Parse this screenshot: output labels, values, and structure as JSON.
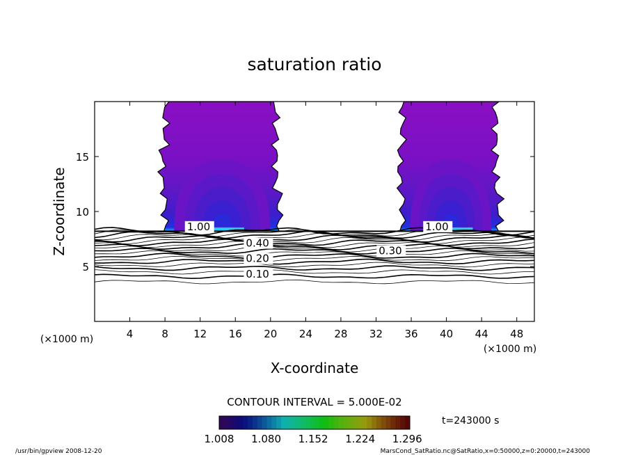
{
  "chart_data": {
    "type": "contour",
    "title": "saturation ratio",
    "xlabel": "X-coordinate",
    "ylabel": "Z-coordinate",
    "x_unit_label": "(×1000 m)",
    "y_unit_label": "(×1000 m)",
    "xlim": [
      0,
      50
    ],
    "ylim": [
      0,
      20
    ],
    "x_ticks": [
      "4",
      "8",
      "12",
      "16",
      "20",
      "24",
      "28",
      "32",
      "36",
      "40",
      "44",
      "48"
    ],
    "y_ticks": [
      "5",
      "10",
      "15"
    ],
    "contour_interval_label": "CONTOUR INTERVAL = 5.000E-02",
    "time_label": "t=243000 s",
    "colorbar_ticks": [
      "1.008",
      "1.080",
      "1.152",
      "1.224",
      "1.296"
    ],
    "colorbar_range": [
      1.008,
      1.3
    ],
    "contour_labels": [
      {
        "text": "0.10",
        "x": 17.2,
        "z": 4.0
      },
      {
        "text": "0.20",
        "x": 17.2,
        "z": 5.4
      },
      {
        "text": "0.30",
        "x": 32.3,
        "z": 6.1
      },
      {
        "text": "0.40",
        "x": 17.2,
        "z": 6.8
      },
      {
        "text": "1.00",
        "x": 10.5,
        "z": 8.3
      },
      {
        "text": "1.00",
        "x": 37.6,
        "z": 8.3
      }
    ],
    "supersaturated_columns": [
      {
        "x_range": [
          8,
          21
        ],
        "z_range": [
          8.2,
          20
        ],
        "max_value_near_z": 8.5
      },
      {
        "x_range": [
          35,
          46
        ],
        "z_range": [
          8.2,
          20
        ],
        "max_value_near_z": 8.5
      }
    ],
    "contour_levels_below": [
      0.05,
      0.1,
      0.15,
      0.2,
      0.25,
      0.3,
      0.35,
      0.4,
      0.45,
      0.5,
      0.55,
      0.6,
      0.65,
      0.7,
      0.75,
      0.8,
      0.85,
      0.9,
      0.95,
      1.0
    ],
    "colors": {
      "fill_low": "#8000c0",
      "fill_mid": "#4020c8",
      "fill_high": "#00c0ff"
    }
  },
  "footer": {
    "left": "/usr/bin/gpview   2008-12-20",
    "right": "MarsCond_SatRatio.nc@SatRatio,x=0:50000,z=0:20000,t=243000"
  }
}
